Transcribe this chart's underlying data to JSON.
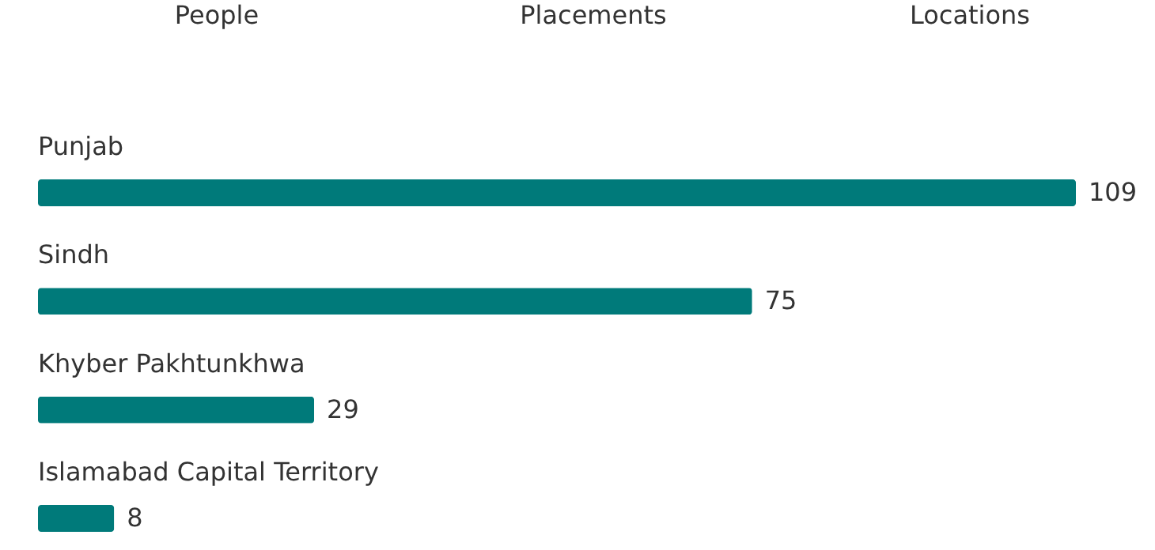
{
  "chart_data": {
    "type": "bar",
    "orientation": "horizontal",
    "categories": [
      "Punjab",
      "Sindh",
      "Khyber Pakhtunkhwa",
      "Islamabad Capital Territory"
    ],
    "values": [
      109,
      75,
      29,
      8
    ],
    "color": "#007a7a",
    "data_labels": true,
    "annotations": [
      "People",
      "Placements",
      "Locations"
    ]
  }
}
